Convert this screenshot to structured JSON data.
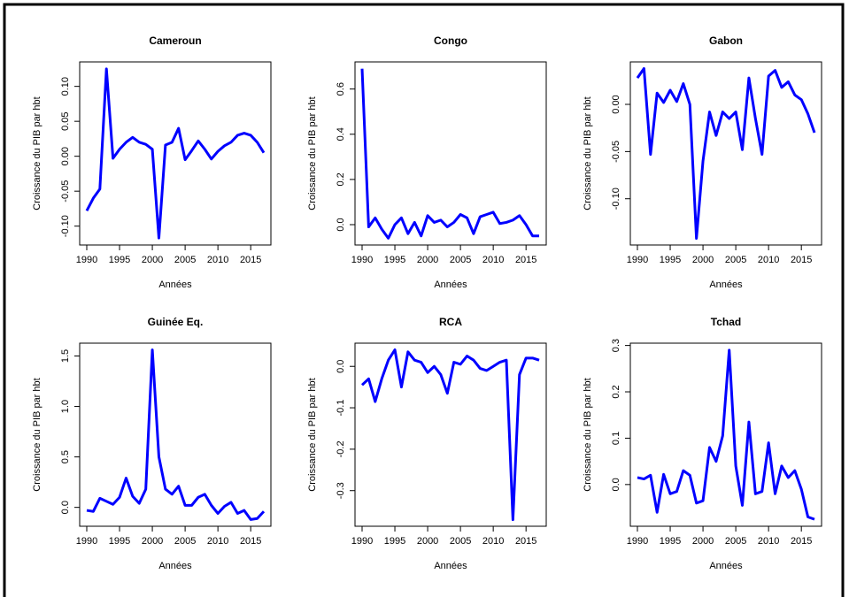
{
  "chart_data": [
    {
      "type": "line",
      "title": "Cameroun",
      "xlabel": "Années",
      "ylabel": "Croissance du PIB par hbt",
      "color": "#0000ff",
      "x": [
        1990,
        1991,
        1992,
        1993,
        1994,
        1995,
        1996,
        1997,
        1998,
        1999,
        2000,
        2001,
        2002,
        2003,
        2004,
        2005,
        2006,
        2007,
        2008,
        2009,
        2010,
        2011,
        2012,
        2013,
        2014,
        2015,
        2016,
        2017
      ],
      "values": [
        -0.078,
        -0.06,
        -0.047,
        0.125,
        -0.003,
        0.01,
        0.02,
        0.027,
        0.02,
        0.017,
        0.01,
        -0.117,
        0.016,
        0.02,
        0.04,
        -0.005,
        0.008,
        0.022,
        0.01,
        -0.004,
        0.007,
        0.015,
        0.02,
        0.03,
        0.033,
        0.03,
        0.02,
        0.005
      ],
      "xlim": [
        1988.92,
        2018.08
      ],
      "xticks": [
        1990,
        1995,
        2000,
        2005,
        2010,
        2015
      ],
      "ylim": [
        -0.127,
        0.135
      ],
      "yticks": [
        {
          "value": -0.1,
          "label": "-0.10"
        },
        -0.05,
        {
          "value": 0,
          "label": "0.00"
        },
        0.05,
        {
          "value": 0.1,
          "label": "0.10"
        }
      ]
    },
    {
      "type": "line",
      "title": "Congo",
      "xlabel": "Années",
      "ylabel": "Croissance du PIB par hbt",
      "color": "#0000ff",
      "x": [
        1990,
        1991,
        1992,
        1993,
        1994,
        1995,
        1996,
        1997,
        1998,
        1999,
        2000,
        2001,
        2002,
        2003,
        2004,
        2005,
        2006,
        2007,
        2008,
        2009,
        2010,
        2011,
        2012,
        2013,
        2014,
        2015,
        2016,
        2017
      ],
      "values": [
        0.69,
        -0.01,
        0.03,
        -0.02,
        -0.06,
        0,
        0.03,
        -0.04,
        0.01,
        -0.05,
        0.04,
        0.01,
        0.02,
        -0.01,
        0.01,
        0.045,
        0.03,
        -0.04,
        0.035,
        0.045,
        0.055,
        0.005,
        0.01,
        0.02,
        0.04,
        0,
        -0.05,
        -0.05
      ],
      "xlim": [
        1988.92,
        2018.08
      ],
      "xticks": [
        1990,
        1995,
        2000,
        2005,
        2010,
        2015
      ],
      "ylim": [
        -0.09,
        0.72
      ],
      "yticks": [
        {
          "value": 0,
          "label": "0.0"
        },
        0.2,
        0.4,
        0.6
      ]
    },
    {
      "type": "line",
      "title": "Gabon",
      "xlabel": "Années",
      "ylabel": "Croissance du PIB par hbt",
      "color": "#0000ff",
      "x": [
        1990,
        1991,
        1992,
        1993,
        1994,
        1995,
        1996,
        1997,
        1998,
        1999,
        2000,
        2001,
        2002,
        2003,
        2004,
        2005,
        2006,
        2007,
        2008,
        2009,
        2010,
        2011,
        2012,
        2013,
        2014,
        2015,
        2016,
        2017
      ],
      "values": [
        0.028,
        0.038,
        -0.053,
        0.012,
        0.002,
        0.015,
        0.003,
        0.022,
        0,
        -0.142,
        -0.06,
        -0.008,
        -0.033,
        -0.008,
        -0.015,
        -0.008,
        -0.048,
        0.028,
        -0.015,
        -0.053,
        0.03,
        0.036,
        0.018,
        0.024,
        0.01,
        0.005,
        -0.01,
        -0.03
      ],
      "xlim": [
        1988.92,
        2018.08
      ],
      "xticks": [
        1990,
        1995,
        2000,
        2005,
        2010,
        2015
      ],
      "ylim": [
        -0.149,
        0.045
      ],
      "yticks": [
        {
          "value": -0.1,
          "label": "-0.10"
        },
        -0.05,
        {
          "value": 0,
          "label": "0.00"
        }
      ]
    },
    {
      "type": "line",
      "title": "Guinée Eq.",
      "xlabel": "Années",
      "ylabel": "Croissance du PIB par hbt",
      "color": "#0000ff",
      "x": [
        1990,
        1991,
        1992,
        1993,
        1994,
        1995,
        1996,
        1997,
        1998,
        1999,
        2000,
        2001,
        2002,
        2003,
        2004,
        2005,
        2006,
        2007,
        2008,
        2009,
        2010,
        2011,
        2012,
        2013,
        2014,
        2015,
        2016,
        2017
      ],
      "values": [
        -0.03,
        -0.04,
        0.09,
        0.06,
        0.03,
        0.1,
        0.29,
        0.11,
        0.04,
        0.18,
        1.56,
        0.5,
        0.18,
        0.13,
        0.21,
        0.02,
        0.02,
        0.1,
        0.13,
        0.02,
        -0.06,
        0.01,
        0.05,
        -0.06,
        -0.03,
        -0.12,
        -0.11,
        -0.04
      ],
      "xlim": [
        1988.92,
        2018.08
      ],
      "xticks": [
        1990,
        1995,
        2000,
        2005,
        2010,
        2015
      ],
      "ylim": [
        -0.187,
        1.627
      ],
      "yticks": [
        {
          "value": 0,
          "label": "0.0"
        },
        0.5,
        {
          "value": 1,
          "label": "1.0"
        },
        1.5
      ]
    },
    {
      "type": "line",
      "title": "RCA",
      "xlabel": "Années",
      "ylabel": "Croissance du PIB par hbt",
      "color": "#0000ff",
      "x": [
        1990,
        1991,
        1992,
        1993,
        1994,
        1995,
        1996,
        1997,
        1998,
        1999,
        2000,
        2001,
        2002,
        2003,
        2004,
        2005,
        2006,
        2007,
        2008,
        2009,
        2010,
        2011,
        2012,
        2013,
        2014,
        2015,
        2016,
        2017
      ],
      "values": [
        -0.045,
        -0.03,
        -0.085,
        -0.03,
        0.015,
        0.04,
        -0.05,
        0.035,
        0.015,
        0.01,
        -0.015,
        0,
        -0.02,
        -0.065,
        0.01,
        0.005,
        0.025,
        0.015,
        -0.005,
        -0.01,
        0,
        0.01,
        0.015,
        -0.37,
        -0.02,
        0.02,
        0.02,
        0.015
      ],
      "xlim": [
        1988.92,
        2018.08
      ],
      "xticks": [
        1990,
        1995,
        2000,
        2005,
        2010,
        2015
      ],
      "ylim": [
        -0.386,
        0.056
      ],
      "yticks": [
        -0.3,
        -0.2,
        -0.1,
        {
          "value": 0,
          "label": "0.0"
        }
      ]
    },
    {
      "type": "line",
      "title": "Tchad",
      "xlabel": "Années",
      "ylabel": "Croissance du PIB par hbt",
      "color": "#0000ff",
      "x": [
        1990,
        1991,
        1992,
        1993,
        1994,
        1995,
        1996,
        1997,
        1998,
        1999,
        2000,
        2001,
        2002,
        2003,
        2004,
        2005,
        2006,
        2007,
        2008,
        2009,
        2010,
        2011,
        2012,
        2013,
        2014,
        2015,
        2016,
        2017
      ],
      "values": [
        0.015,
        0.012,
        0.02,
        -0.06,
        0.022,
        -0.02,
        -0.015,
        0.03,
        0.02,
        -0.04,
        -0.035,
        0.08,
        0.05,
        0.105,
        0.29,
        0.04,
        -0.045,
        0.135,
        -0.02,
        -0.015,
        0.09,
        -0.02,
        0.04,
        0.015,
        0.03,
        -0.01,
        -0.07,
        -0.075
      ],
      "xlim": [
        1988.92,
        2018.08
      ],
      "xticks": [
        1990,
        1995,
        2000,
        2005,
        2010,
        2015
      ],
      "ylim": [
        -0.09,
        0.305
      ],
      "yticks": [
        {
          "value": 0,
          "label": "0.0"
        },
        0.1,
        0.2,
        0.3
      ]
    }
  ]
}
